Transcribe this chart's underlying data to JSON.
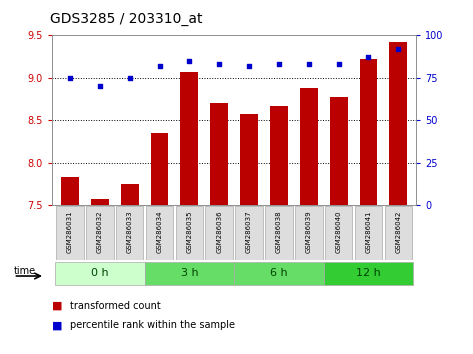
{
  "title": "GDS3285 / 203310_at",
  "samples": [
    "GSM286031",
    "GSM286032",
    "GSM286033",
    "GSM286034",
    "GSM286035",
    "GSM286036",
    "GSM286037",
    "GSM286038",
    "GSM286039",
    "GSM286040",
    "GSM286041",
    "GSM286042"
  ],
  "bar_values": [
    7.83,
    7.58,
    7.75,
    8.35,
    9.07,
    8.7,
    8.57,
    8.67,
    8.88,
    8.77,
    9.22,
    9.42
  ],
  "dot_values": [
    75,
    70,
    75,
    82,
    85,
    83,
    82,
    83,
    83,
    83,
    87,
    92
  ],
  "bar_color": "#bb0000",
  "dot_color": "#0000cc",
  "ylim_left": [
    7.5,
    9.5
  ],
  "ylim_right": [
    0,
    100
  ],
  "yticks_left": [
    7.5,
    8.0,
    8.5,
    9.0,
    9.5
  ],
  "yticks_right": [
    0,
    25,
    50,
    75,
    100
  ],
  "legend_bar_label": "transformed count",
  "legend_dot_label": "percentile rank within the sample",
  "bg_color": "#ffffff",
  "tick_label_color_left": "#cc0000",
  "tick_label_color_right": "#0000cc",
  "bar_width": 0.6,
  "time_groups": [
    {
      "label": "0 h",
      "start": 0,
      "end": 3,
      "color": "#ccffcc"
    },
    {
      "label": "3 h",
      "start": 3,
      "end": 6,
      "color": "#66dd66"
    },
    {
      "label": "6 h",
      "start": 6,
      "end": 9,
      "color": "#66dd66"
    },
    {
      "label": "12 h",
      "start": 9,
      "end": 12,
      "color": "#33cc33"
    }
  ],
  "sample_box_color": "#dddddd",
  "sample_box_edge": "#aaaaaa",
  "title_fontsize": 10,
  "tick_fontsize": 7,
  "label_fontsize": 7,
  "time_label_fontsize": 8,
  "sample_fontsize": 5
}
